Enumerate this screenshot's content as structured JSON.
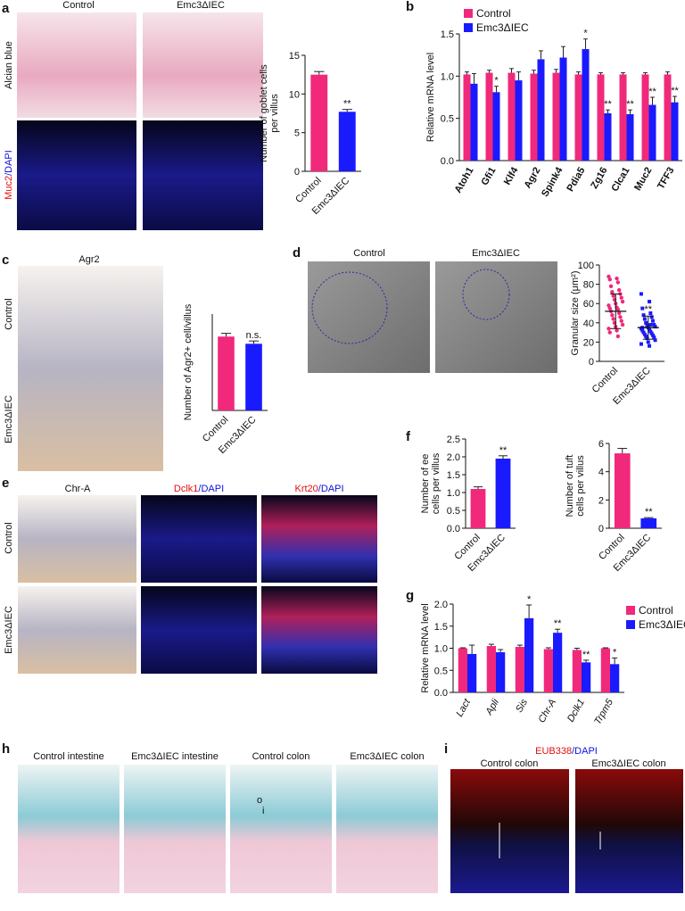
{
  "figure": {
    "a": {
      "letter": "a",
      "columns": [
        "Control",
        "Emc3ΔIEC"
      ],
      "row1": "Alcian blue",
      "row2": [
        "Muc2",
        "/DAPI"
      ]
    },
    "b": {
      "letter": "b"
    },
    "c": {
      "letter": "c",
      "column": "Agr2",
      "rows": [
        "Control",
        "Emc3ΔIEC"
      ]
    },
    "d": {
      "letter": "d",
      "columns": [
        "Control",
        "Emc3ΔIEC"
      ]
    },
    "e": {
      "letter": "e",
      "columns": [
        "Chr-A",
        [
          "Dclk1",
          "/DAPI"
        ],
        [
          "Krt20",
          "/DAPI"
        ]
      ],
      "rows": [
        "Control",
        "Emc3ΔIEC"
      ]
    },
    "f": {
      "letter": "f"
    },
    "g": {
      "letter": "g"
    },
    "h": {
      "letter": "h",
      "columns": [
        "Control intestine",
        "Emc3ΔIEC intestine",
        "Control colon",
        "Emc3ΔIEC colon"
      ],
      "marks": [
        "o",
        "i"
      ]
    },
    "i": {
      "letter": "i",
      "title": [
        "EUB338",
        "/DAPI"
      ],
      "columns": [
        "Control colon",
        "Emc3ΔIEC colon"
      ]
    }
  },
  "chart_data": [
    {
      "type": "bar",
      "y_label": [
        "Number of goblet cells",
        "per villus"
      ],
      "categories": [
        "Control",
        "Emc3ΔIEC"
      ],
      "values": [
        12.5,
        7.7
      ],
      "errors": [
        0.4,
        0.3
      ],
      "colors": [
        "#f0297b",
        "#1a1aff"
      ],
      "ylim": [
        0,
        15
      ],
      "yticks": [
        0,
        5,
        10,
        15
      ],
      "value_annotations": [
        null,
        "**"
      ]
    },
    {
      "type": "bar",
      "y_label": [
        "Relative mRNA level"
      ],
      "categories": [
        "Atoh1",
        "Gfi1",
        "Klf4",
        "Agr2",
        "Spink4",
        "Pdia5",
        "Zg16",
        "Clca1",
        "Muc2",
        "TFF3"
      ],
      "series": [
        {
          "name": "Control",
          "color": "#f0297b",
          "values": [
            1.02,
            1.04,
            1.04,
            1.03,
            1.04,
            1.02,
            1.02,
            1.02,
            1.02,
            1.02
          ],
          "errors": [
            0.03,
            0.03,
            0.05,
            0.04,
            0.04,
            0.03,
            0.02,
            0.02,
            0.02,
            0.03
          ]
        },
        {
          "name": "Emc3ΔIEC",
          "color": "#1a1aff",
          "values": [
            0.91,
            0.81,
            0.95,
            1.2,
            1.22,
            1.32,
            0.56,
            0.55,
            0.66,
            0.69
          ],
          "errors": [
            0.12,
            0.07,
            0.1,
            0.1,
            0.13,
            0.12,
            0.04,
            0.05,
            0.09,
            0.07
          ],
          "value_annotations": [
            null,
            "*",
            null,
            null,
            null,
            "*",
            "**",
            "**",
            "**",
            "**"
          ]
        }
      ],
      "ylim": [
        0,
        1.5
      ],
      "yticks": [
        {
          "value": 0,
          "label": "0.0"
        },
        0.5,
        {
          "value": 1,
          "label": "1.0"
        },
        1.5
      ],
      "legend": "top-left"
    },
    {
      "type": "bar",
      "y_label": [
        "Number of Agr2+ cell/villus"
      ],
      "categories": [
        "Control",
        "Emc3ΔIEC"
      ],
      "values": [
        9.2,
        8.3
      ],
      "errors": [
        0.4,
        0.35
      ],
      "colors": [
        "#f0297b",
        "#1a1aff"
      ],
      "ylim": [
        0,
        12
      ],
      "yticks": [],
      "value_annotations": [
        null,
        "n.s."
      ]
    },
    {
      "type": "scatter",
      "y_label": [
        "Granular size (μm²)"
      ],
      "categories": [
        "Control",
        "Emc3ΔIEC"
      ],
      "values": [
        [
          88,
          86,
          85,
          82,
          78,
          74,
          72,
          70,
          68,
          66,
          64,
          62,
          60,
          58,
          56,
          55,
          54,
          52,
          50,
          48,
          46,
          44,
          42,
          40,
          38,
          36,
          34,
          32,
          30,
          26
        ],
        [
          70,
          62,
          55,
          50,
          48,
          46,
          44,
          42,
          40,
          38,
          37,
          36,
          35,
          34,
          33,
          32,
          31,
          30,
          29,
          28,
          27,
          26,
          25,
          24,
          22,
          20,
          18,
          16,
          35,
          38
        ]
      ],
      "means": [
        52,
        35
      ],
      "sd": [
        18,
        12
      ],
      "colors": [
        "#f0297b",
        "#1a1aff"
      ],
      "markers": [
        "circle",
        "square"
      ],
      "ylim": [
        0,
        100
      ],
      "yticks": [
        0,
        20,
        40,
        60,
        80,
        100
      ],
      "value_annotations": [
        null,
        "**"
      ]
    },
    {
      "type": "bar",
      "y_label": [
        "Number of ee",
        "cells per villus"
      ],
      "categories": [
        "Control",
        "Emc3ΔIEC"
      ],
      "values": [
        1.1,
        1.95
      ],
      "errors": [
        0.06,
        0.08
      ],
      "colors": [
        "#f0297b",
        "#1a1aff"
      ],
      "ylim": [
        0,
        2.5
      ],
      "yticks": [
        {
          "value": 0,
          "label": "0.0"
        },
        0.5,
        {
          "value": 1,
          "label": "1.0"
        },
        1.5,
        {
          "value": 2,
          "label": "2.0"
        },
        2.5
      ],
      "value_annotations": [
        null,
        "**"
      ]
    },
    {
      "type": "bar",
      "y_label": [
        "Number of tuft",
        "cells per villus"
      ],
      "categories": [
        "Control",
        "Emc3ΔIEC"
      ],
      "values": [
        5.3,
        0.7
      ],
      "errors": [
        0.35,
        0.05
      ],
      "colors": [
        "#f0297b",
        "#1a1aff"
      ],
      "ylim": [
        0,
        6
      ],
      "yticks": [
        0,
        2,
        4,
        6
      ],
      "value_annotations": [
        null,
        "**"
      ]
    },
    {
      "type": "bar",
      "y_label": [
        "Relative mRNA level"
      ],
      "categories": [
        "Lact",
        "Apli",
        "Sis",
        "Chr-A",
        "Dclk1",
        "Trpm5"
      ],
      "series": [
        {
          "name": "Control",
          "color": "#f0297b",
          "values": [
            1.0,
            1.05,
            1.03,
            0.98,
            0.96,
            1.0
          ],
          "errors": [
            0.01,
            0.04,
            0.04,
            0.03,
            0.04,
            0.01
          ]
        },
        {
          "name": "Emc3ΔIEC",
          "color": "#1a1aff",
          "values": [
            0.87,
            0.91,
            1.68,
            1.35,
            0.68,
            0.64
          ],
          "errors": [
            0.2,
            0.06,
            0.3,
            0.08,
            0.05,
            0.14
          ],
          "value_annotations": [
            null,
            null,
            "*",
            "**",
            "**",
            "*"
          ]
        }
      ],
      "ylim": [
        0,
        2
      ],
      "yticks": [
        {
          "value": 0,
          "label": "0.0"
        },
        0.5,
        {
          "value": 1,
          "label": "1.0"
        },
        1.5,
        {
          "value": 2,
          "label": "2.0"
        }
      ],
      "legend": "top-right",
      "italic_categories": true
    }
  ]
}
